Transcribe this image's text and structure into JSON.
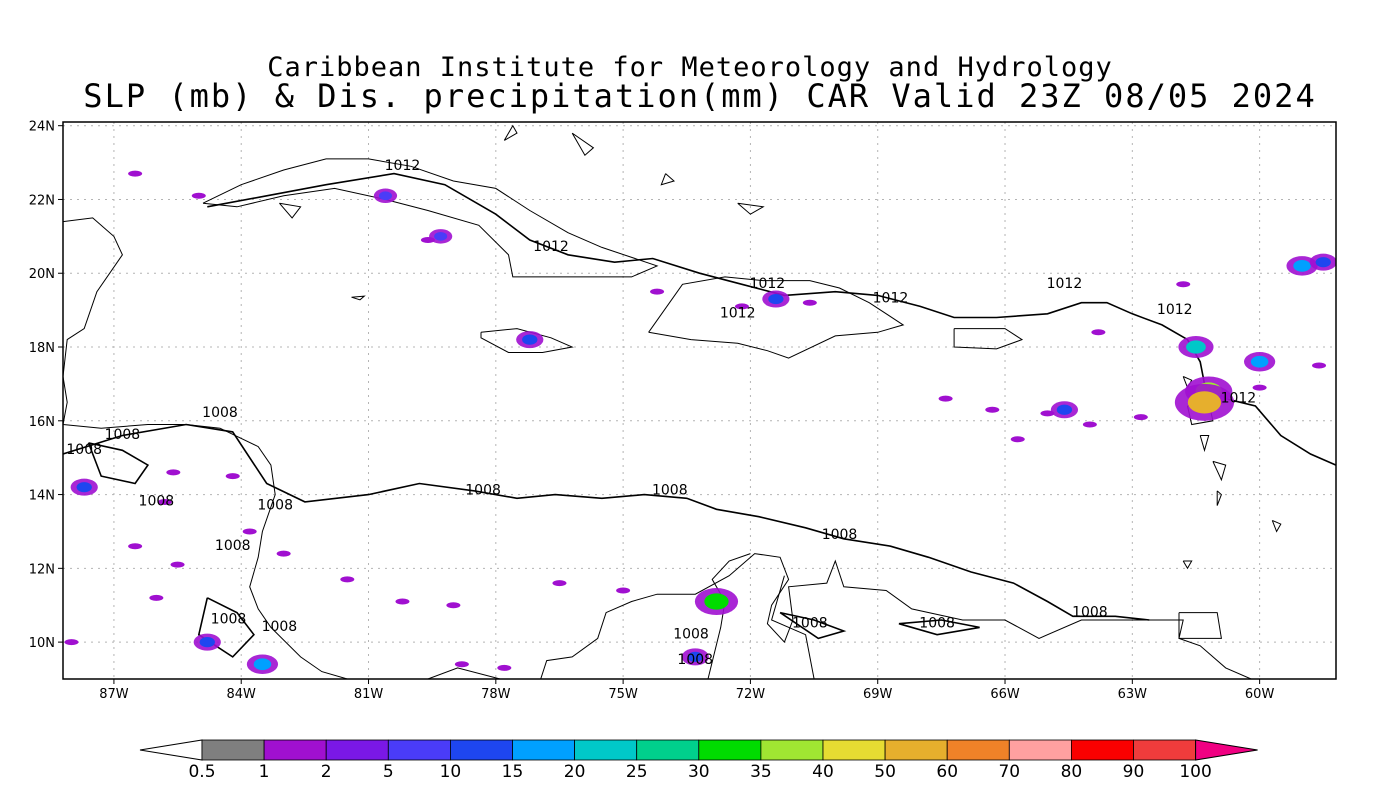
{
  "title_line1": "Caribbean Institute for Meteorology and Hydrology",
  "title_line2": "SLP (mb) & Dis. precipitation(mm) CAR Valid 23Z 08/05 2024",
  "lat_ticks": [
    "24N",
    "22N",
    "20N",
    "18N",
    "16N",
    "14N",
    "12N",
    "10N"
  ],
  "lon_ticks": [
    "87W",
    "84W",
    "81W",
    "78W",
    "75W",
    "72W",
    "69W",
    "66W",
    "63W",
    "60W"
  ],
  "isobar_labels": [
    {
      "text": "1012",
      "lon": -80.2,
      "lat": 22.8
    },
    {
      "text": "1012",
      "lon": -76.7,
      "lat": 20.6
    },
    {
      "text": "1012",
      "lon": -71.6,
      "lat": 19.6
    },
    {
      "text": "1012",
      "lon": -72.3,
      "lat": 18.8
    },
    {
      "text": "1012",
      "lon": -68.7,
      "lat": 19.2
    },
    {
      "text": "1012",
      "lon": -64.6,
      "lat": 19.6
    },
    {
      "text": "1012",
      "lon": -62.0,
      "lat": 18.9
    },
    {
      "text": "1012",
      "lon": -60.5,
      "lat": 16.5
    },
    {
      "text": "1008",
      "lon": -84.5,
      "lat": 16.1
    },
    {
      "text": "1008",
      "lon": -86.8,
      "lat": 15.5
    },
    {
      "text": "1008",
      "lon": -87.7,
      "lat": 15.1
    },
    {
      "text": "1008",
      "lon": -86.0,
      "lat": 13.7
    },
    {
      "text": "1008",
      "lon": -83.2,
      "lat": 13.6
    },
    {
      "text": "1008",
      "lon": -84.2,
      "lat": 12.5
    },
    {
      "text": "1008",
      "lon": -84.3,
      "lat": 10.5
    },
    {
      "text": "1008",
      "lon": -83.1,
      "lat": 10.3
    },
    {
      "text": "1008",
      "lon": -78.3,
      "lat": 14.0
    },
    {
      "text": "1008",
      "lon": -73.9,
      "lat": 14.0
    },
    {
      "text": "1008",
      "lon": -69.9,
      "lat": 12.8
    },
    {
      "text": "1008",
      "lon": -73.4,
      "lat": 10.1
    },
    {
      "text": "1008",
      "lon": -73.3,
      "lat": 9.4
    },
    {
      "text": "1008",
      "lon": -70.6,
      "lat": 10.4
    },
    {
      "text": "1008",
      "lon": -67.6,
      "lat": 10.4
    },
    {
      "text": "1008",
      "lon": -64.0,
      "lat": 10.7
    }
  ],
  "precip_cells": [
    {
      "lon": -61.5,
      "lat": 18.0,
      "mm": 20
    },
    {
      "lon": -61.2,
      "lat": 16.8,
      "mm": 35
    },
    {
      "lon": -61.3,
      "lat": 16.5,
      "mm": 50
    },
    {
      "lon": -60.0,
      "lat": 17.6,
      "mm": 15
    },
    {
      "lon": -59.0,
      "lat": 20.2,
      "mm": 15
    },
    {
      "lon": -58.5,
      "lat": 20.3,
      "mm": 10
    },
    {
      "lon": -71.4,
      "lat": 19.3,
      "mm": 10
    },
    {
      "lon": -72.8,
      "lat": 11.1,
      "mm": 30
    },
    {
      "lon": -73.3,
      "lat": 9.6,
      "mm": 10
    },
    {
      "lon": -84.8,
      "lat": 10.0,
      "mm": 10
    },
    {
      "lon": -83.5,
      "lat": 9.4,
      "mm": 15
    },
    {
      "lon": -87.7,
      "lat": 14.2,
      "mm": 10
    },
    {
      "lon": -64.6,
      "lat": 16.3,
      "mm": 10
    },
    {
      "lon": -77.2,
      "lat": 18.2,
      "mm": 10
    },
    {
      "lon": -79.3,
      "lat": 21.0,
      "mm": 5
    },
    {
      "lon": -80.6,
      "lat": 22.1,
      "mm": 5
    }
  ],
  "colorbar": {
    "labels": [
      "0.5",
      "1",
      "2",
      "5",
      "10",
      "15",
      "20",
      "25",
      "30",
      "35",
      "40",
      "50",
      "60",
      "70",
      "80",
      "90",
      "100"
    ],
    "colors": [
      "#ffffff",
      "#7f7f7f",
      "#a010d0",
      "#7a18e6",
      "#4a3cf8",
      "#1e46f0",
      "#00a0ff",
      "#00c8c8",
      "#00d08c",
      "#00dc00",
      "#a0e632",
      "#e6dc32",
      "#e6af2d",
      "#f08228",
      "#ffa0a0",
      "#fa0000",
      "#f03c3c",
      "#f00082"
    ]
  },
  "colors": {
    "frame": "#000000",
    "grid": "#b4b4b4"
  }
}
